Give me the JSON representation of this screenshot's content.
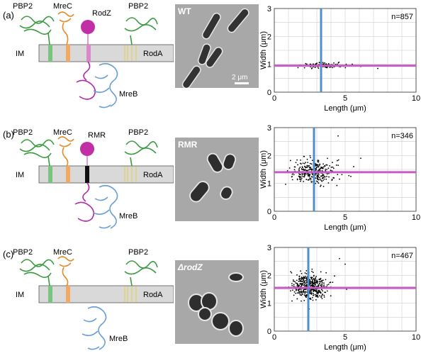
{
  "labels": {
    "pbp2": "PBP2",
    "mrec": "MreC",
    "im": "IM",
    "roda": "RodA",
    "mreb": "MreB",
    "width_axis": "Width",
    "length_axis": "Length",
    "unit": "(μm)",
    "scale_bar": "2 μm"
  },
  "panels": [
    {
      "tag": "(a)",
      "middle_protein": "RodZ",
      "strain": "WT",
      "count": "n=857"
    },
    {
      "tag": "(b)",
      "middle_protein": "RMR",
      "strain": "RMR",
      "count": "n=346"
    },
    {
      "tag": "(c)",
      "middle_protein": "",
      "strain": "ΔrodZ",
      "count": "n=467"
    }
  ],
  "chart_data": [
    {
      "type": "scatter",
      "xlabel": "Length (μm)",
      "ylabel": "Width (μm)",
      "xlim": [
        0,
        10
      ],
      "ylim": [
        0,
        3
      ],
      "xticks": [
        0,
        5,
        10
      ],
      "yticks": [
        0,
        1,
        2,
        3
      ],
      "grid": true,
      "annotation": "n=857",
      "x_line": 3.3,
      "y_line": 0.95,
      "cloud": {
        "n": 160,
        "x_mean": 3.3,
        "x_sd": 0.7,
        "y_mean": 0.95,
        "y_sd": 0.04
      },
      "outliers": [
        [
          6.1,
          0.92
        ],
        [
          7.3,
          0.85
        ],
        [
          5.5,
          1.0
        ]
      ]
    },
    {
      "type": "scatter",
      "xlabel": "Length (μm)",
      "ylabel": "Width (μm)",
      "xlim": [
        0,
        10
      ],
      "ylim": [
        0,
        3
      ],
      "xticks": [
        0,
        5,
        10
      ],
      "yticks": [
        0,
        1,
        2,
        3
      ],
      "grid": true,
      "annotation": "n=346",
      "x_line": 2.8,
      "y_line": 1.4,
      "cloud": {
        "n": 320,
        "x_mean": 2.8,
        "x_sd": 0.75,
        "y_mean": 1.4,
        "y_sd": 0.22
      },
      "outliers": [
        [
          5.4,
          1.25
        ],
        [
          5.6,
          1.6
        ],
        [
          4.5,
          2.7
        ],
        [
          6.1,
          1.9
        ]
      ]
    },
    {
      "type": "scatter",
      "xlabel": "Length (μm)",
      "ylabel": "Width (μm)",
      "xlim": [
        0,
        10
      ],
      "ylim": [
        0,
        3
      ],
      "xticks": [
        0,
        5,
        10
      ],
      "yticks": [
        0,
        1,
        2,
        3
      ],
      "grid": true,
      "annotation": "n=467",
      "x_line": 2.4,
      "y_line": 1.55,
      "cloud": {
        "n": 440,
        "x_mean": 2.5,
        "x_sd": 0.6,
        "y_mean": 1.6,
        "y_sd": 0.23
      },
      "outliers": [
        [
          5.0,
          2.4
        ],
        [
          5.1,
          1.5
        ],
        [
          8.2,
          1.55
        ],
        [
          4.6,
          2.6
        ]
      ]
    }
  ]
}
